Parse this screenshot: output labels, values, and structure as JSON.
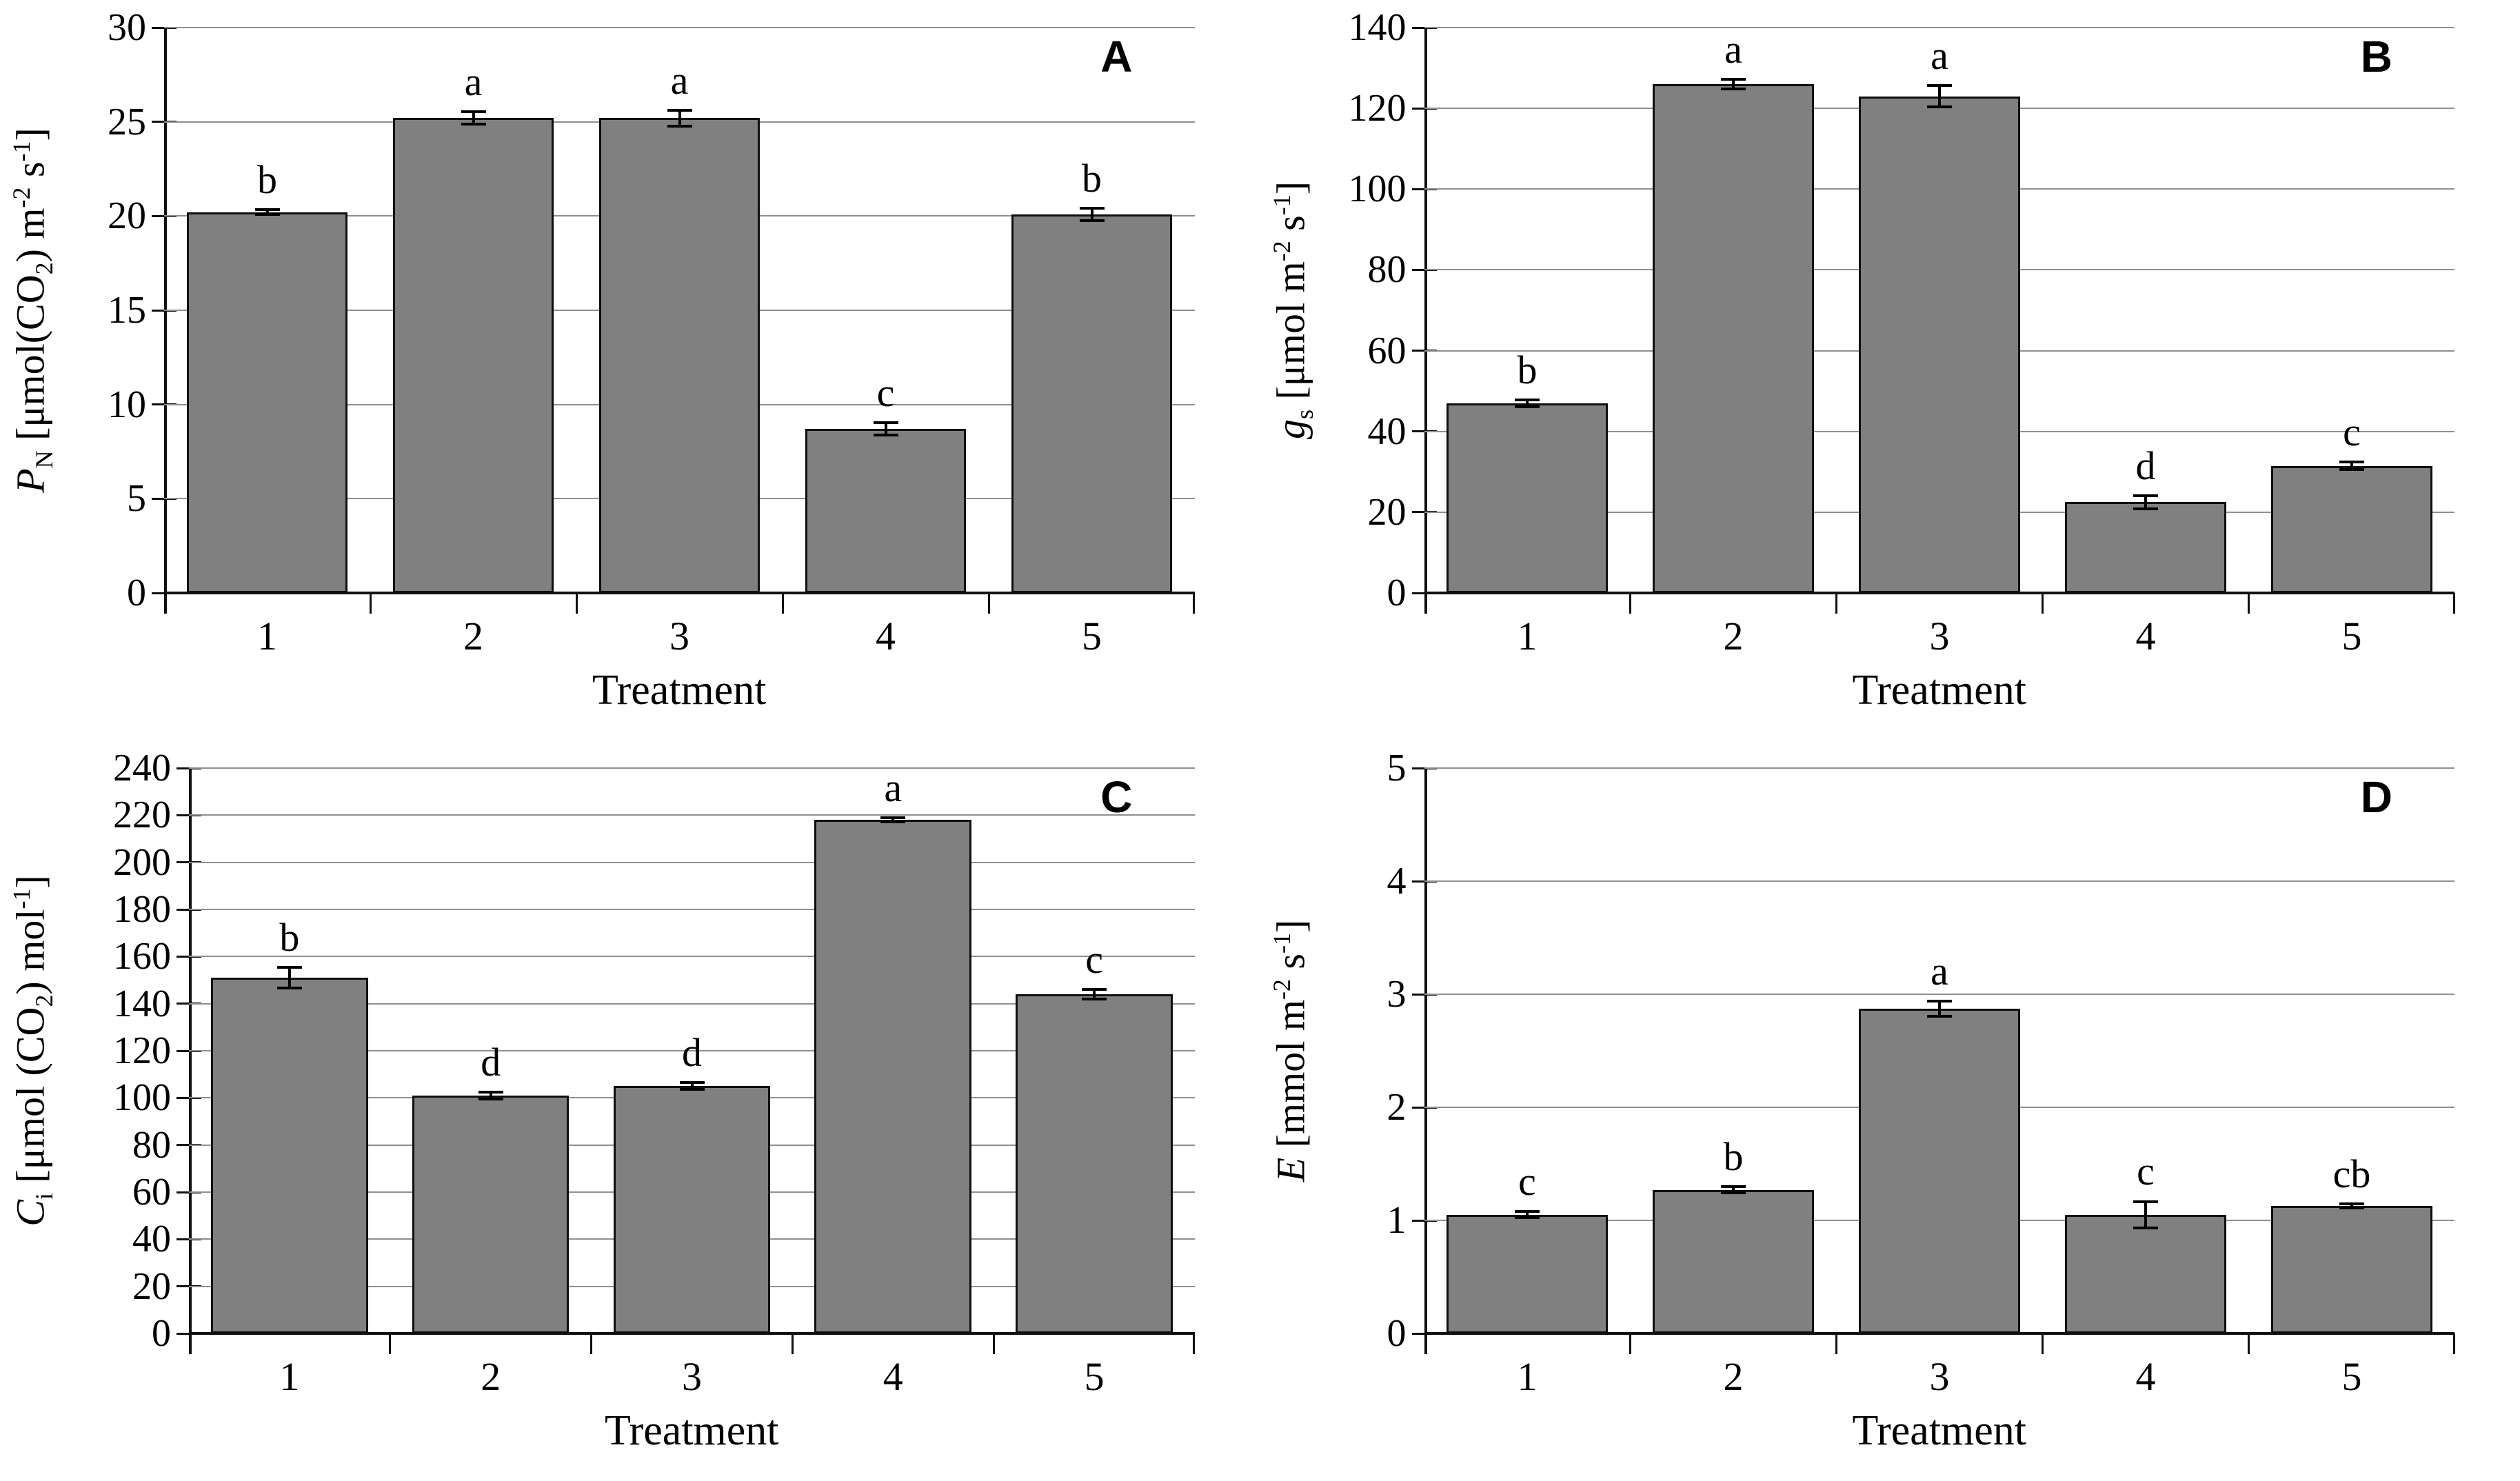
{
  "figure": {
    "background": "#ffffff",
    "panel_count": 4,
    "colors": {
      "bar_fill": "#808080",
      "bar_border": "#0f0f0f",
      "gridline": "#8f8f8f",
      "axis": "#111111",
      "text": "#000000"
    }
  },
  "chart_data": [
    {
      "type": "bar",
      "panel_label": "A",
      "ylabel_text": "PN [μmol(CO2) m-2 s-1]",
      "ylabel_segments": [
        {
          "i": "P"
        },
        {
          "sub": "N"
        },
        {
          "t": " [μmol(CO"
        },
        {
          "sub": "2"
        },
        {
          "t": ") m"
        },
        {
          "sup": "-2"
        },
        {
          "t": " s"
        },
        {
          "sup": "-1"
        },
        {
          "t": "]"
        }
      ],
      "xlabel": "Treatment",
      "categories": [
        "1",
        "2",
        "3",
        "4",
        "5"
      ],
      "values": [
        20.2,
        25.2,
        25.2,
        8.7,
        20.1
      ],
      "errors": [
        0.2,
        0.4,
        0.5,
        0.4,
        0.4
      ],
      "sig_letters": [
        "b",
        "a",
        "a",
        "c",
        "b"
      ],
      "ylim": [
        0,
        30
      ],
      "ystep": 5,
      "grid": true,
      "legend": "none"
    },
    {
      "type": "bar",
      "panel_label": "B",
      "ylabel_text": "gs [μmol m-2 s-1]",
      "ylabel_segments": [
        {
          "i": "g"
        },
        {
          "sub": "s"
        },
        {
          "t": " [μmol m"
        },
        {
          "sup": "-2"
        },
        {
          "t": " s"
        },
        {
          "sup": "-1"
        },
        {
          "t": "]"
        }
      ],
      "xlabel": "Treatment",
      "categories": [
        "1",
        "2",
        "3",
        "4",
        "5"
      ],
      "values": [
        47,
        126,
        123,
        22.5,
        31.5
      ],
      "errors": [
        1.2,
        1.5,
        3.0,
        2.0,
        1.2
      ],
      "sig_letters": [
        "b",
        "a",
        "a",
        "d",
        "c"
      ],
      "ylim": [
        0,
        140
      ],
      "ystep": 20,
      "grid": true,
      "legend": "none"
    },
    {
      "type": "bar",
      "panel_label": "C",
      "ylabel_text": "Ci [μmol (CO2) mol-1]",
      "ylabel_segments": [
        {
          "i": "C"
        },
        {
          "sub": "i"
        },
        {
          "t": " [μmol (CO"
        },
        {
          "sub": "2"
        },
        {
          "t": ") mol"
        },
        {
          "sup": "-1"
        },
        {
          "t": "]"
        }
      ],
      "xlabel": "Treatment",
      "categories": [
        "1",
        "2",
        "3",
        "4",
        "5"
      ],
      "values": [
        151,
        101,
        105,
        218,
        144
      ],
      "errors": [
        5,
        2,
        2,
        1.5,
        2.5
      ],
      "sig_letters": [
        "b",
        "d",
        "d",
        "a",
        "c"
      ],
      "ylim": [
        0,
        240
      ],
      "ystep": 20,
      "grid": true,
      "legend": "none"
    },
    {
      "type": "bar",
      "panel_label": "D",
      "ylabel_text": "E [mmol m-2 s-1]",
      "ylabel_segments": [
        {
          "i": "E"
        },
        {
          "t": " [mmol m"
        },
        {
          "sup": "-2"
        },
        {
          "t": " s"
        },
        {
          "sup": "-1"
        },
        {
          "t": "]"
        }
      ],
      "xlabel": "Treatment",
      "categories": [
        "1",
        "2",
        "3",
        "4",
        "5"
      ],
      "values": [
        1.05,
        1.27,
        2.87,
        1.05,
        1.13
      ],
      "errors": [
        0.04,
        0.04,
        0.08,
        0.13,
        0.03
      ],
      "sig_letters": [
        "c",
        "b",
        "a",
        "c",
        "cb"
      ],
      "ylim": [
        0,
        5
      ],
      "ystep": 1,
      "grid": true,
      "legend": "none"
    }
  ]
}
